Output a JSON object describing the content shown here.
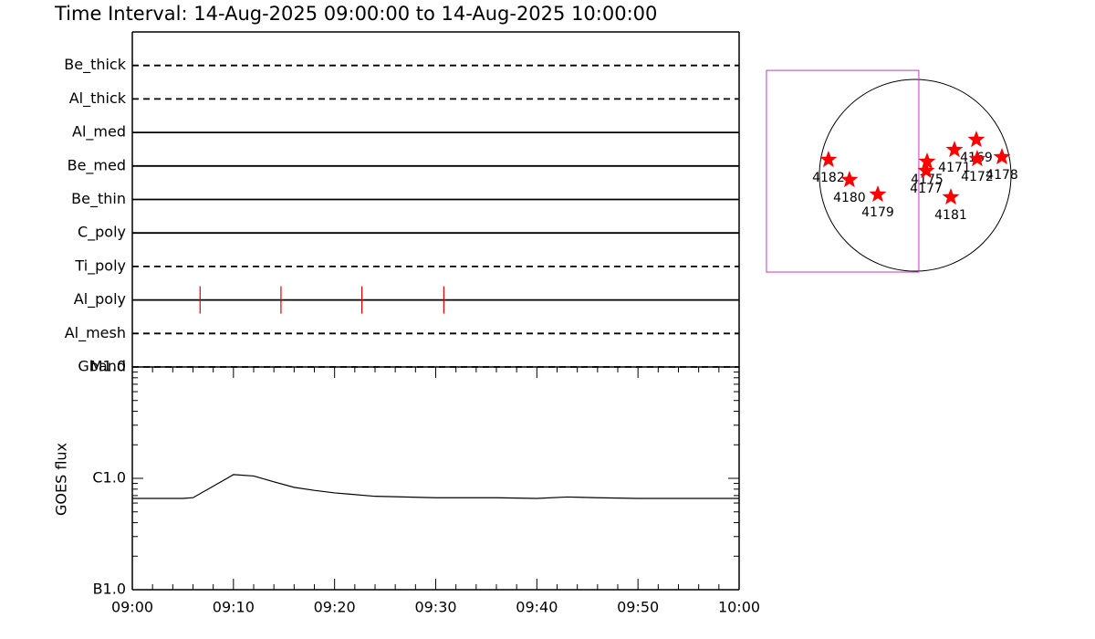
{
  "chart_data": [
    {
      "type": "timeline",
      "title": "Time Interval: 14-Aug-2025 09:00:00 to 14-Aug-2025 10:00:00",
      "categories": [
        "Be_thick",
        "Al_thick",
        "Al_med",
        "Be_med",
        "Be_thin",
        "C_poly",
        "Ti_poly",
        "Al_poly",
        "Al_mesh",
        "Gband"
      ],
      "styles": [
        "dashed",
        "dashed",
        "solid",
        "solid",
        "solid",
        "solid",
        "dashed",
        "solid",
        "dashed",
        "dashed"
      ],
      "event_x": [
        [],
        [],
        [],
        [],
        [],
        [],
        [],
        [
          6.7,
          14.7,
          22.7,
          30.8
        ],
        [],
        []
      ],
      "event_color": "#dd0000",
      "xlim": [
        0,
        60
      ]
    },
    {
      "type": "line",
      "ylabel": "GOES flux",
      "x": [
        0,
        5,
        6,
        8,
        10,
        12,
        14,
        16,
        18,
        20,
        24,
        30,
        36,
        40,
        43,
        46,
        50,
        60
      ],
      "values": [
        6.6e-07,
        6.6e-07,
        6.7e-07,
        8.5e-07,
        1.08e-06,
        1.05e-06,
        9.3e-07,
        8.3e-07,
        7.8e-07,
        7.4e-07,
        6.9e-07,
        6.7e-07,
        6.7e-07,
        6.6e-07,
        6.8e-07,
        6.7e-07,
        6.6e-07,
        6.6e-07
      ],
      "color": "#000000",
      "log_scale": true,
      "xlim": [
        0,
        60
      ],
      "xticks": [
        {
          "value": 0,
          "label": "09:00"
        },
        {
          "value": 10,
          "label": "09:10"
        },
        {
          "value": 20,
          "label": "09:20"
        },
        {
          "value": 30,
          "label": "09:30"
        },
        {
          "value": 40,
          "label": "09:40"
        },
        {
          "value": 50,
          "label": "09:50"
        },
        {
          "value": 60,
          "label": "10:00"
        }
      ],
      "ylim": [
        1e-07,
        1e-05
      ],
      "yticks": [
        {
          "value": 1e-07,
          "label": "B1.0"
        },
        {
          "value": 1e-06,
          "label": "C1.0"
        },
        {
          "value": 1e-05,
          "label": "M1.0"
        }
      ]
    },
    {
      "type": "scatter",
      "x": [
        -860,
        -652,
        -371,
        118,
        109,
        389,
        606,
        615,
        860,
        353
      ],
      "values": [
        154,
        -45,
        -190,
        136,
        45,
        253,
        353,
        163,
        181,
        -217
      ],
      "labels": [
        "4182",
        "4180",
        "4179",
        "4175",
        "4177",
        "4171",
        "4169",
        "4172",
        "4178",
        "4181"
      ],
      "color": "#ff0000",
      "solar_radius": 950,
      "fov": {
        "xlim": [
          -1475,
          36
        ],
        "ylim": [
          -959,
          1040
        ],
        "color": "#cc33cc"
      },
      "xlim": [
        -1565,
        1059
      ],
      "ylim": [
        -1158,
        1195
      ]
    }
  ]
}
